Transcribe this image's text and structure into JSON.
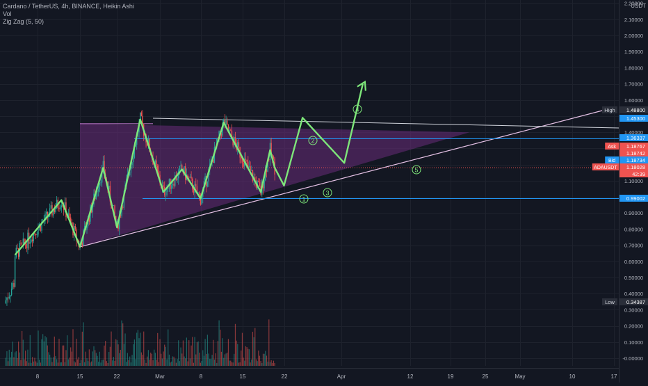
{
  "legend": {
    "title": "Cardano / TetherUS, 4h, BINANCE, Heikin Ashi",
    "vol": "Vol",
    "zigzag": "Zig Zag (5, 50)"
  },
  "currency": "USDT",
  "chart_data": {
    "type": "candlestick",
    "symbol": "ADAUSDT",
    "exchange": "BINANCE",
    "interval": "4h",
    "style": "Heikin Ashi",
    "y_axis_ticks": [
      "2.20000",
      "2.10000",
      "2.00000",
      "1.90000",
      "1.80000",
      "1.70000",
      "1.60000",
      "1.50000",
      "1.40000",
      "1.30000",
      "1.20000",
      "1.10000",
      "1.00000",
      "0.90000",
      "0.80000",
      "0.70000",
      "0.60000",
      "0.50000",
      "0.40000",
      "0.30000",
      "0.20000",
      "0.10000",
      "-0.00000"
    ],
    "x_axis_ticks": [
      "8",
      "15",
      "22",
      "Mar",
      "8",
      "15",
      "22",
      "Apr",
      "12",
      "19",
      "25",
      "May",
      "10",
      "17"
    ],
    "price_labels": [
      {
        "name": "High",
        "value": "1.48800",
        "kind": "high"
      },
      {
        "name": "",
        "value": "1.45300",
        "kind": "blue"
      },
      {
        "name": "",
        "value": "1.36337",
        "kind": "blue"
      },
      {
        "name": "Ask",
        "value": "1.18767",
        "kind": "red"
      },
      {
        "name": "",
        "value": "1.18742",
        "kind": "red"
      },
      {
        "name": "Bid",
        "value": "1.18734",
        "kind": "blue"
      },
      {
        "name": "ADAUSDT",
        "value": "1.18028",
        "kind": "red"
      },
      {
        "name": "",
        "value": "42:39",
        "kind": "red"
      },
      {
        "name": "",
        "value": "0.99002",
        "kind": "blue"
      },
      {
        "name": "Low",
        "value": "0.34387",
        "kind": "low"
      }
    ],
    "zigzag": [
      {
        "date": "Feb 1",
        "price": 0.64
      },
      {
        "date": "Feb 11",
        "price": 0.98
      },
      {
        "date": "Feb 15",
        "price": 0.69
      },
      {
        "date": "Feb 20",
        "price": 1.18
      },
      {
        "date": "Feb 23",
        "price": 0.81
      },
      {
        "date": "Feb 28",
        "price": 1.48
      },
      {
        "date": "Mar 5",
        "price": 1.03
      },
      {
        "date": "Mar 9",
        "price": 1.17
      },
      {
        "date": "Mar 13",
        "price": 0.99
      },
      {
        "date": "Mar 18",
        "price": 1.46
      },
      {
        "date": "Mar 26",
        "price": 1.03
      },
      {
        "date": "Mar 28",
        "price": 1.29
      },
      {
        "date": "Mar 29",
        "price": 1.18
      }
    ],
    "projection": [
      {
        "date": "Mar 29",
        "price": 1.18
      },
      {
        "date": "Mar 31",
        "price": 1.07
      },
      {
        "date": "Apr 4",
        "price": 1.49
      },
      {
        "date": "Apr 13",
        "price": 1.21
      },
      {
        "date": "Apr 17",
        "price": 1.7
      }
    ],
    "wave_labels": [
      "1",
      "2",
      "3",
      "4",
      "5"
    ],
    "triangle": {
      "start_date": "Feb 15",
      "upper": 1.453,
      "lower_start": 0.69,
      "apex_date": "May 10",
      "apex": 1.4
    },
    "levels": [
      1.36337,
      0.99002
    ]
  },
  "colors": {
    "background": "#131722",
    "up": "#26a69a",
    "down": "#ef5350",
    "zigzag": "#7ee67a",
    "triangle_fill": "#6a2c7a",
    "level": "#2196f3",
    "trend": "#e6c2e6"
  }
}
